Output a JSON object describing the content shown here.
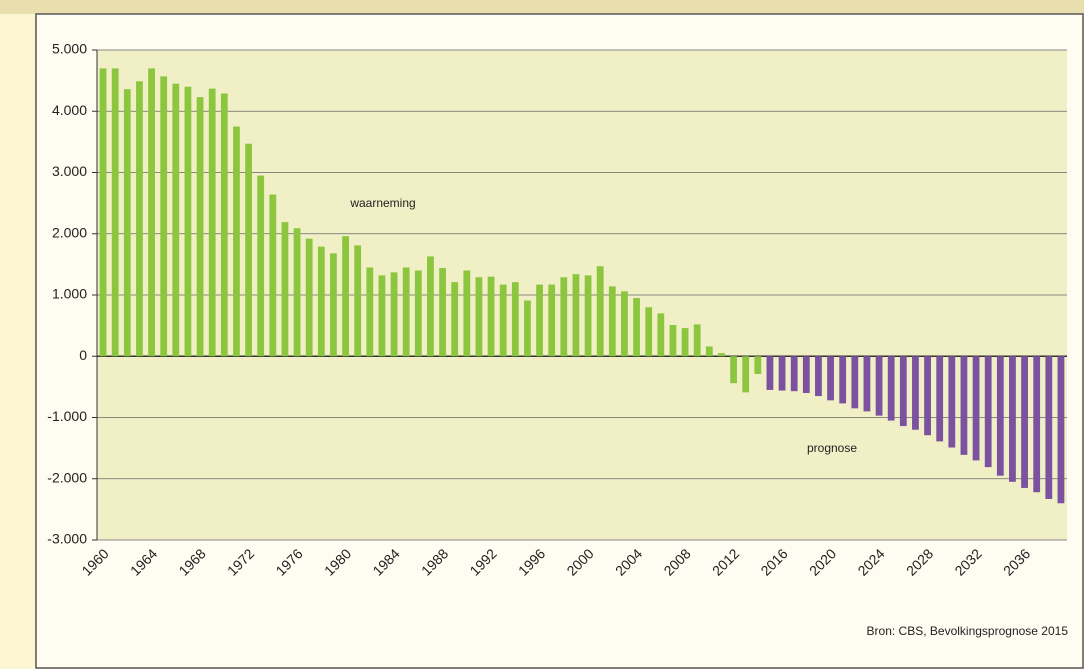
{
  "chart_data": {
    "type": "bar",
    "categories": [
      "1960",
      null,
      null,
      null,
      "1964",
      null,
      null,
      null,
      "1968",
      null,
      null,
      null,
      "1972",
      null,
      null,
      null,
      "1976",
      null,
      null,
      null,
      "1980",
      null,
      null,
      null,
      "1984",
      null,
      null,
      null,
      "1988",
      null,
      null,
      null,
      "1992",
      null,
      null,
      null,
      "1996",
      null,
      null,
      null,
      "2000",
      null,
      null,
      null,
      "2004",
      null,
      null,
      null,
      "2008",
      null,
      null,
      null,
      "2012",
      null,
      null,
      null,
      "2016",
      null,
      null,
      null,
      "2020",
      null,
      null,
      null,
      "2024",
      null,
      null,
      null,
      "2028",
      null,
      null,
      null,
      "2032",
      null,
      null,
      null,
      "2036",
      null,
      null,
      null
    ],
    "series": [
      {
        "name": "waarneming",
        "color": "#8cc63f",
        "values": [
          4700,
          4700,
          4360,
          4490,
          4700,
          4570,
          4450,
          4400,
          4230,
          4370,
          4290,
          3750,
          3470,
          2950,
          2640,
          2190,
          2090,
          1920,
          1790,
          1680,
          1960,
          1810,
          1450,
          1320,
          1370,
          1450,
          1400,
          1630,
          1440,
          1210,
          1400,
          1290,
          1300,
          1170,
          1210,
          910,
          1170,
          1170,
          1290,
          1340,
          1320,
          1470,
          1140,
          1060,
          950,
          800,
          700,
          510,
          460,
          520,
          160,
          50,
          -440,
          -590,
          -290,
          null,
          null,
          null,
          null,
          null,
          null,
          null,
          null,
          null,
          null,
          null,
          null,
          null,
          null,
          null,
          null,
          null,
          null,
          null,
          null,
          null,
          null,
          null,
          null,
          null
        ]
      },
      {
        "name": "prognose",
        "color": "#7b52a0",
        "values": [
          null,
          null,
          null,
          null,
          null,
          null,
          null,
          null,
          null,
          null,
          null,
          null,
          null,
          null,
          null,
          null,
          null,
          null,
          null,
          null,
          null,
          null,
          null,
          null,
          null,
          null,
          null,
          null,
          null,
          null,
          null,
          null,
          null,
          null,
          null,
          null,
          null,
          null,
          null,
          null,
          null,
          null,
          null,
          null,
          null,
          null,
          null,
          null,
          null,
          null,
          null,
          null,
          null,
          null,
          null,
          -550,
          -560,
          -570,
          -600,
          -650,
          -720,
          -770,
          -850,
          -900,
          -970,
          -1050,
          -1140,
          -1200,
          -1290,
          -1390,
          -1490,
          -1610,
          -1700,
          -1810,
          -1950,
          -2050,
          -2150,
          -2220,
          -2330,
          -2400
        ]
      }
    ],
    "ylim": [
      -3000,
      5000
    ],
    "yticks": [
      {
        "value": -3000,
        "label": "-3.000"
      },
      {
        "value": -2000,
        "label": "-2.000"
      },
      {
        "value": -1000,
        "label": "-1.000"
      },
      0,
      {
        "value": 1000,
        "label": "1.000"
      },
      {
        "value": 2000,
        "label": "2.000"
      },
      {
        "value": 3000,
        "label": "3.000"
      },
      {
        "value": 4000,
        "label": "4.000"
      },
      {
        "value": 5000,
        "label": "5.000"
      }
    ],
    "grid": true,
    "source": "Bron: CBS, Bevolkingsprognose 2015"
  }
}
